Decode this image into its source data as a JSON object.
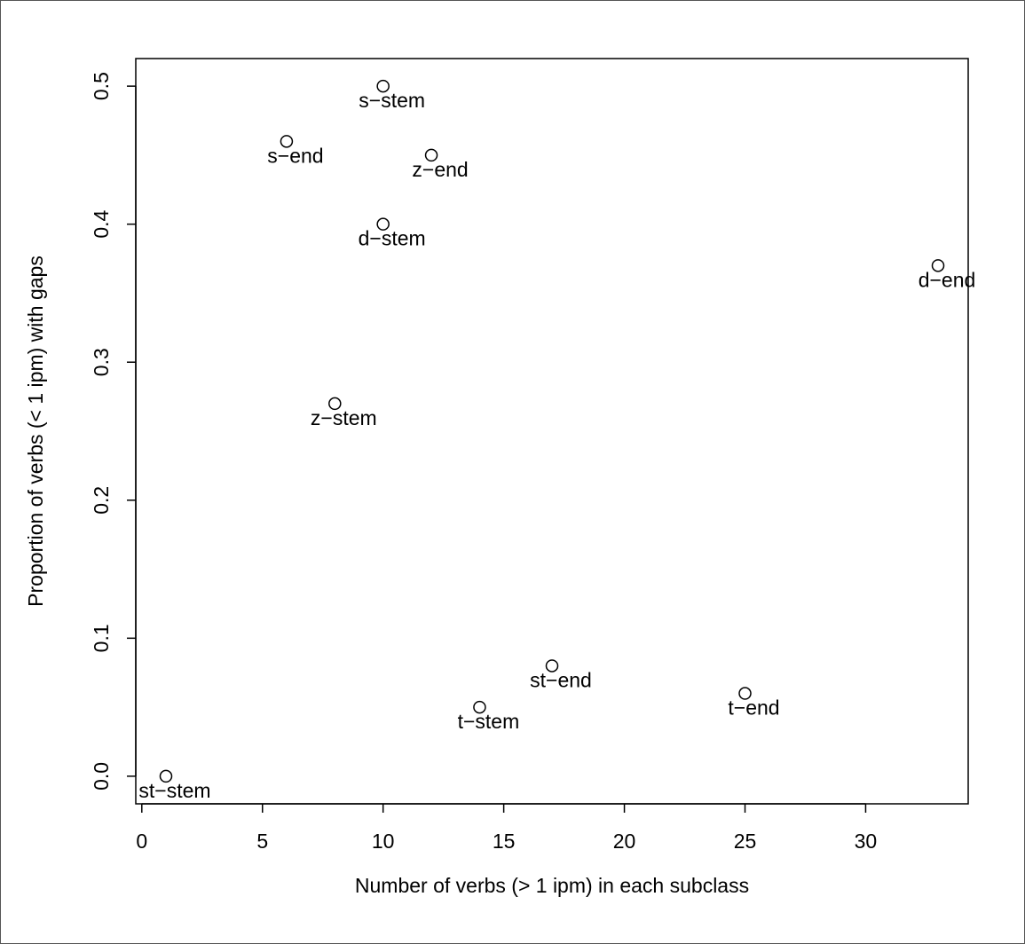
{
  "chart_data": {
    "type": "scatter",
    "xlabel": "Number of verbs (> 1 ipm) in each subclass",
    "ylabel": "Proportion of verbs (< 1 ipm) with gaps",
    "xlim": [
      -0.25,
      34.25
    ],
    "ylim": [
      -0.02,
      0.52
    ],
    "xticks": [
      0,
      5,
      10,
      15,
      20,
      25,
      30
    ],
    "yticks": [
      0.0,
      0.1,
      0.2,
      0.3,
      0.4,
      0.5
    ],
    "xtick_labels": [
      "0",
      "5",
      "10",
      "15",
      "20",
      "25",
      "30"
    ],
    "ytick_labels": [
      "0.0",
      "0.1",
      "0.2",
      "0.3",
      "0.4",
      "0.5"
    ],
    "grid": false,
    "marker": "open-circle",
    "points": [
      {
        "label": "s−stem",
        "x": 10,
        "y": 0.5
      },
      {
        "label": "s−end",
        "x": 6,
        "y": 0.46
      },
      {
        "label": "z−end",
        "x": 12,
        "y": 0.45
      },
      {
        "label": "d−stem",
        "x": 10,
        "y": 0.4
      },
      {
        "label": "d−end",
        "x": 33,
        "y": 0.37
      },
      {
        "label": "z−stem",
        "x": 8,
        "y": 0.27
      },
      {
        "label": "st−end",
        "x": 17,
        "y": 0.08
      },
      {
        "label": "t−end",
        "x": 25,
        "y": 0.06
      },
      {
        "label": "t−stem",
        "x": 14,
        "y": 0.05
      },
      {
        "label": "st−stem",
        "x": 1,
        "y": 0.0
      }
    ]
  }
}
